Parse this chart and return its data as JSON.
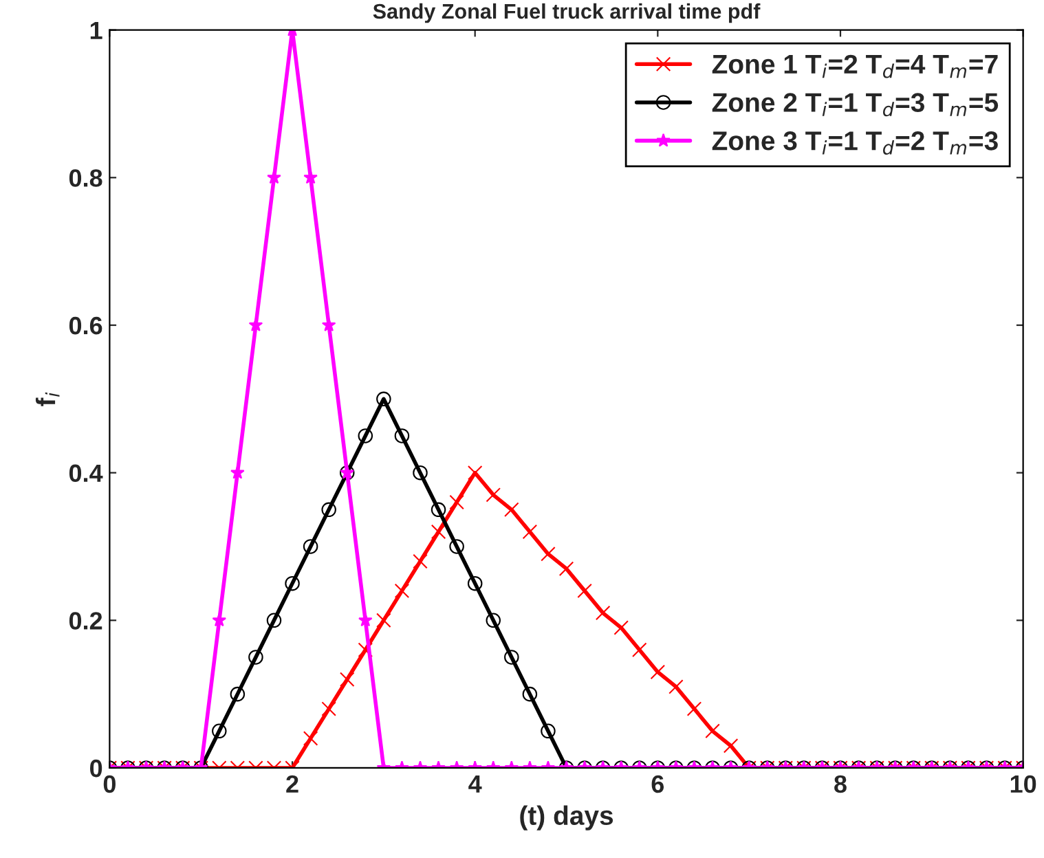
{
  "chart_data": {
    "type": "line",
    "title": "Sandy Zonal Fuel truck arrival time pdf",
    "xlabel": "(t) days",
    "ylabel": "f$_{i}$",
    "x": [
      0,
      0.2,
      0.4,
      0.6,
      0.8,
      1,
      1.2,
      1.4,
      1.6,
      1.8,
      2,
      2.2,
      2.4,
      2.6,
      2.8,
      3,
      3.2,
      3.4,
      3.6,
      3.8,
      4,
      4.2,
      4.4,
      4.6,
      4.8,
      5,
      5.2,
      5.4,
      5.6,
      5.8,
      6,
      6.2,
      6.4,
      6.6,
      6.8,
      7,
      7.2,
      7.4,
      7.6,
      7.8,
      8,
      8.2,
      8.4,
      8.6,
      8.8,
      9,
      9.2,
      9.4,
      9.6,
      9.8,
      10
    ],
    "series": [
      {
        "name": "Zone 1 T$_{i}$=2 T$_{d}$=4 T$_{m}$=7",
        "color": "#ff0000",
        "marker": "cross",
        "values": [
          0,
          0,
          0,
          0,
          0,
          0,
          0,
          0,
          0,
          0,
          0,
          0.04,
          0.08,
          0.12,
          0.16,
          0.2,
          0.24,
          0.28,
          0.32,
          0.36,
          0.4,
          0.37,
          0.35,
          0.32,
          0.29,
          0.27,
          0.24,
          0.21,
          0.19,
          0.16,
          0.13,
          0.11,
          0.08,
          0.05,
          0.03,
          0,
          0,
          0,
          0,
          0,
          0,
          0,
          0,
          0,
          0,
          0,
          0,
          0,
          0,
          0,
          0
        ]
      },
      {
        "name": "Zone 2 T$_{i}$=1 T$_{d}$=3 T$_{m}$=5",
        "color": "#000000",
        "marker": "circle",
        "values": [
          0,
          0,
          0,
          0,
          0,
          0,
          0.05,
          0.1,
          0.15,
          0.2,
          0.25,
          0.3,
          0.35,
          0.4,
          0.45,
          0.5,
          0.45,
          0.4,
          0.35,
          0.3,
          0.25,
          0.2,
          0.15,
          0.1,
          0.05,
          0,
          0,
          0,
          0,
          0,
          0,
          0,
          0,
          0,
          0,
          0,
          0,
          0,
          0,
          0,
          0,
          0,
          0,
          0,
          0,
          0,
          0,
          0,
          0,
          0,
          0
        ]
      },
      {
        "name": "Zone 3 T$_{i}$=1 T$_{d}$=2 T$_{m}$=3",
        "color": "#ff00ff",
        "marker": "star",
        "values": [
          0,
          0,
          0,
          0,
          0,
          0,
          0.2,
          0.4,
          0.6,
          0.8,
          1,
          0.8,
          0.6,
          0.4,
          0.2,
          0,
          0,
          0,
          0,
          0,
          0,
          0,
          0,
          0,
          0,
          0,
          0,
          0,
          0,
          0,
          0,
          0,
          0,
          0,
          0,
          0,
          0,
          0,
          0,
          0,
          0,
          0,
          0,
          0,
          0,
          0,
          0,
          0,
          0,
          0,
          0
        ]
      }
    ],
    "xlim": [
      0,
      10
    ],
    "xticks": [
      0,
      2,
      4,
      6,
      8,
      10
    ],
    "ylim": [
      0,
      1
    ],
    "yticks": [
      0,
      0.2,
      0.4,
      0.6,
      0.8,
      1
    ],
    "grid": false,
    "legend": "top right"
  }
}
